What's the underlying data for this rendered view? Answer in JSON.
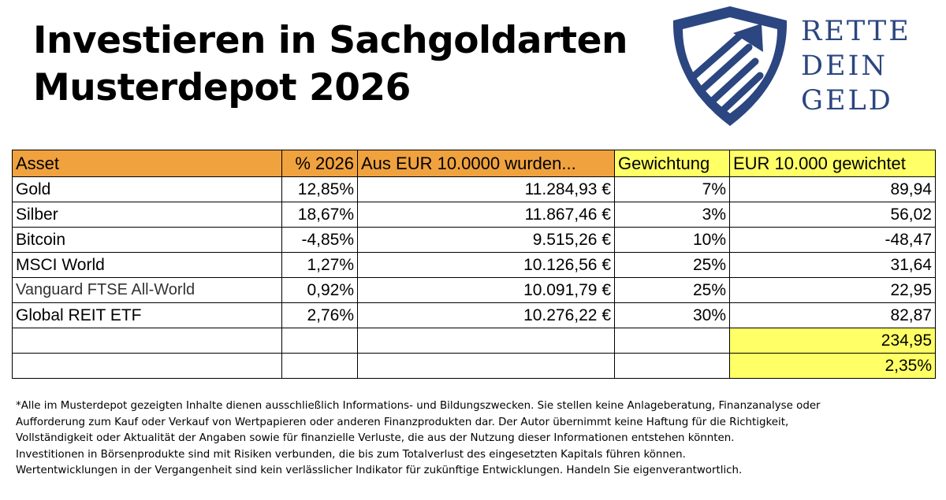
{
  "title": {
    "line1": "Investieren in Sachgoldarten",
    "line2": "Musterdepot 2026"
  },
  "logo": {
    "line1": "RETTE",
    "line2": "DEIN",
    "line3": "GELD",
    "icon": "shield-arrow-icon",
    "color": "#2b4680"
  },
  "table": {
    "headers": [
      "Asset",
      "% 2026",
      "Aus EUR 10.0000 wurden...",
      "Gewichtung",
      "EUR 10.000 gewichtet"
    ],
    "rows": [
      {
        "asset": "Gold",
        "pct": "12,85%",
        "amount": "11.284,93 €",
        "weight": "7%",
        "weighted": "89,94"
      },
      {
        "asset": "Silber",
        "pct": "18,67%",
        "amount": "11.867,46 €",
        "weight": "3%",
        "weighted": "56,02"
      },
      {
        "asset": "Bitcoin",
        "pct": "-4,85%",
        "amount": "9.515,26 €",
        "weight": "10%",
        "weighted": "-48,47"
      },
      {
        "asset": "MSCI World",
        "pct": "1,27%",
        "amount": "10.126,56 €",
        "weight": "25%",
        "weighted": "31,64"
      },
      {
        "asset": "Vanguard FTSE All-World",
        "pct": "0,92%",
        "amount": "10.091,79 €",
        "weight": "25%",
        "weighted": "22,95"
      },
      {
        "asset": "Global REIT ETF",
        "pct": "2,76%",
        "amount": "10.276,22 €",
        "weight": "30%",
        "weighted": "82,87"
      }
    ],
    "total": "234,95",
    "total_pct": "2,35%",
    "colors": {
      "header_orange": "#f0a23f",
      "header_yellow": "#ffff66"
    }
  },
  "disclaimer": {
    "line1": "*Alle im Musterdepot gezeigten Inhalte dienen ausschließlich Informations- und Bildungszwecken. Sie stellen keine Anlageberatung, Finanzanalyse oder",
    "line2": "Aufforderung zum Kauf oder Verkauf von Wertpapieren oder anderen Finanzprodukten dar. Der Autor übernimmt keine Haftung für die Richtigkeit,",
    "line3": "Vollständigkeit oder Aktualität der Angaben sowie für finanzielle Verluste, die aus der Nutzung dieser Informationen entstehen könnten.",
    "line4": "Investitionen in Börsenprodukte sind mit Risiken verbunden, die bis zum Totalverlust des eingesetzten Kapitals führen können.",
    "line5": "Wertentwicklungen in der Vergangenheit sind kein verlässlicher Indikator für zukünftige Entwicklungen. Handeln Sie eigenverantwortlich."
  }
}
